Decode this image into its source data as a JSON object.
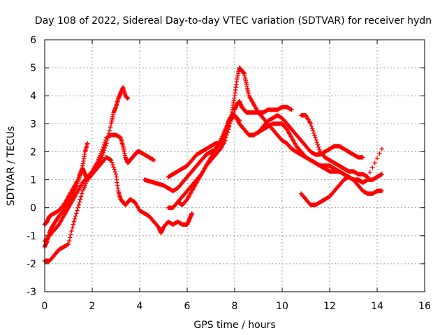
{
  "chart_data": {
    "type": "scatter",
    "title": "Day 108 of 2022, Sidereal Day-to-day VTEC variation (SDTVAR) for receiver hydn",
    "xlabel": "GPS time / hours",
    "ylabel": "SDTVAR / TECUs",
    "xlim": [
      0,
      16
    ],
    "ylim": [
      -3,
      6
    ],
    "x_ticks": [
      "0",
      "2",
      "4",
      "6",
      "8",
      "10",
      "12",
      "14",
      "16"
    ],
    "y_ticks": [
      "-3",
      "-2",
      "-1",
      "0",
      "1",
      "2",
      "3",
      "4",
      "5",
      "6"
    ],
    "grid": true,
    "marker": "plus",
    "series_color": "#ff0000",
    "series": [
      {
        "x": [
          0.0,
          0.1,
          0.2,
          0.3,
          0.45,
          0.6,
          0.8,
          1.0,
          1.2,
          1.35,
          1.5,
          1.6,
          1.7,
          1.8,
          2.0,
          2.2,
          2.4,
          2.6,
          2.8,
          2.9,
          3.0,
          3.1,
          3.2,
          3.3,
          3.4,
          3.5
        ],
        "y": [
          -1.4,
          -1.2,
          -0.9,
          -0.7,
          -0.5,
          -0.3,
          -0.1,
          0.2,
          0.5,
          0.8,
          1.2,
          1.4,
          1.2,
          1.0,
          1.2,
          1.5,
          1.8,
          2.3,
          3.0,
          3.4,
          3.6,
          3.9,
          4.1,
          4.3,
          4.0,
          3.9
        ]
      },
      {
        "x": [
          0.0,
          0.1,
          0.2,
          0.4,
          0.6,
          0.8,
          1.0,
          1.2,
          1.4,
          1.6,
          1.7,
          1.8
        ],
        "y": [
          -0.6,
          -0.5,
          -0.3,
          -0.2,
          -0.1,
          0.1,
          0.4,
          0.7,
          1.0,
          1.5,
          2.0,
          2.3
        ]
      },
      {
        "x": [
          0.0,
          0.2,
          0.4,
          0.6,
          0.8,
          1.0,
          1.2,
          1.4,
          1.6,
          1.8,
          2.0,
          2.2,
          2.4,
          2.6,
          2.8,
          3.0,
          3.2,
          3.3,
          3.4,
          3.5,
          3.6,
          3.7,
          3.8,
          3.9,
          4.0,
          4.2,
          4.4,
          4.6
        ],
        "y": [
          -1.2,
          -1.0,
          -0.8,
          -0.6,
          -0.3,
          0.0,
          0.3,
          0.6,
          0.9,
          1.1,
          1.3,
          1.6,
          2.0,
          2.5,
          2.6,
          2.6,
          2.5,
          2.2,
          1.8,
          1.6,
          1.7,
          1.8,
          1.9,
          2.0,
          2.0,
          1.9,
          1.8,
          1.7
        ]
      },
      {
        "x": [
          0.0,
          0.2,
          0.4,
          0.6,
          0.8,
          1.0,
          1.2,
          1.4,
          1.6,
          1.8,
          2.0,
          2.2,
          2.4,
          2.6,
          2.8,
          3.0,
          3.1,
          3.2,
          3.3,
          3.4,
          3.5,
          3.6,
          3.8,
          4.0,
          4.2,
          4.4,
          4.6,
          4.8,
          4.9,
          5.0,
          5.2,
          5.4,
          5.6,
          5.8,
          6.0,
          6.1,
          6.2
        ],
        "y": [
          -1.9,
          -1.9,
          -1.7,
          -1.5,
          -1.4,
          -1.3,
          -0.6,
          0.0,
          0.6,
          1.0,
          1.2,
          1.4,
          1.6,
          1.8,
          1.7,
          1.2,
          0.6,
          0.3,
          0.2,
          0.1,
          0.2,
          0.3,
          0.2,
          -0.1,
          -0.2,
          -0.3,
          -0.5,
          -0.7,
          -0.9,
          -0.7,
          -0.5,
          -0.6,
          -0.5,
          -0.6,
          -0.6,
          -0.4,
          -0.2
        ]
      },
      {
        "x": [
          4.2,
          4.4,
          4.6,
          4.8,
          5.0,
          5.2,
          5.4,
          5.6,
          5.8,
          6.0,
          6.2,
          6.4,
          6.6,
          6.8,
          7.0,
          7.2,
          7.4,
          7.6,
          7.7,
          7.8,
          7.9,
          8.0,
          8.1,
          8.2
        ],
        "y": [
          1.0,
          0.95,
          0.9,
          0.85,
          0.8,
          0.7,
          0.6,
          0.7,
          0.9,
          1.1,
          1.3,
          1.5,
          1.7,
          1.9,
          2.0,
          2.1,
          2.3,
          2.7,
          3.0,
          3.2,
          3.3,
          3.3,
          3.2,
          3.1
        ]
      },
      {
        "x": [
          5.2,
          5.4,
          5.6,
          5.8,
          6.0,
          6.2,
          6.4,
          6.6,
          6.8,
          7.0,
          7.2,
          7.4,
          7.6,
          7.8,
          8.0,
          8.1,
          8.2,
          8.3,
          8.4,
          8.5,
          8.6,
          8.8,
          9.0,
          9.2,
          9.4,
          9.6,
          9.8,
          10.0,
          10.2,
          10.4
        ],
        "y": [
          1.1,
          1.2,
          1.3,
          1.4,
          1.5,
          1.7,
          1.9,
          2.0,
          2.1,
          2.2,
          2.3,
          2.3,
          2.6,
          3.0,
          3.5,
          3.7,
          3.8,
          3.6,
          3.5,
          3.4,
          3.4,
          3.4,
          3.4,
          3.4,
          3.5,
          3.5,
          3.5,
          3.6,
          3.6,
          3.5
        ]
      },
      {
        "x": [
          5.6,
          5.8,
          6.0,
          6.2,
          6.4,
          6.6,
          6.8,
          7.0,
          7.2,
          7.4,
          7.6,
          7.8,
          7.9,
          8.0,
          8.1,
          8.2,
          8.3,
          8.4,
          8.5,
          8.6,
          8.8,
          9.0,
          9.2,
          9.4,
          9.6,
          9.8,
          10.0,
          10.2,
          10.4,
          10.6,
          10.8,
          11.0,
          11.2,
          11.4,
          11.6,
          11.8,
          12.0,
          12.2,
          12.4,
          12.6,
          12.8,
          13.0,
          13.2,
          13.4
        ],
        "y": [
          0.2,
          0.1,
          0.3,
          0.6,
          0.9,
          1.2,
          1.5,
          1.7,
          1.9,
          2.1,
          2.4,
          3.0,
          3.5,
          4.0,
          4.6,
          5.0,
          4.9,
          4.8,
          4.4,
          4.0,
          3.7,
          3.4,
          3.2,
          3.0,
          2.8,
          2.6,
          2.4,
          2.3,
          2.1,
          2.0,
          1.9,
          1.8,
          1.7,
          1.6,
          1.5,
          1.5,
          1.5,
          1.4,
          1.3,
          1.2,
          1.1,
          1.0,
          1.0,
          0.9
        ]
      },
      {
        "x": [
          5.2,
          5.4,
          5.6,
          5.8,
          6.0,
          6.2,
          6.4,
          6.6,
          6.8,
          7.0,
          7.2,
          7.4,
          7.6,
          7.8,
          8.0,
          8.2,
          8.4,
          8.6,
          8.8,
          9.0,
          9.2,
          9.4,
          9.6,
          9.8,
          10.0,
          10.2,
          10.4,
          10.6,
          10.8,
          11.0,
          11.2,
          11.4,
          11.6,
          11.8,
          12.0,
          12.2,
          12.4,
          12.6,
          12.8,
          13.0,
          13.2,
          13.4,
          13.6,
          13.8,
          14.0,
          14.2
        ],
        "y": [
          0.0,
          0.0,
          0.2,
          0.4,
          0.6,
          0.8,
          1.0,
          1.2,
          1.5,
          1.8,
          2.1,
          2.4,
          2.8,
          3.1,
          3.3,
          3.0,
          2.8,
          2.6,
          2.6,
          2.7,
          2.8,
          2.9,
          3.0,
          3.0,
          3.0,
          2.8,
          2.5,
          2.2,
          2.0,
          1.8,
          1.7,
          1.6,
          1.5,
          1.4,
          1.3,
          1.3,
          1.3,
          1.2,
          1.1,
          1.0,
          1.0,
          0.9,
          1.0,
          1.0,
          1.1,
          1.2
        ]
      },
      {
        "x": [
          8.2,
          8.4,
          8.6,
          8.8,
          9.0,
          9.2,
          9.4,
          9.6,
          9.8,
          10.0,
          10.2,
          10.4,
          10.6,
          10.8,
          11.0,
          11.2,
          11.4,
          11.6,
          11.8,
          12.0,
          12.2,
          12.4,
          12.6,
          12.8,
          13.0,
          13.2,
          13.4
        ],
        "y": [
          3.0,
          2.8,
          2.6,
          2.6,
          2.7,
          2.9,
          3.1,
          3.2,
          3.3,
          3.2,
          3.0,
          2.8,
          2.6,
          2.4,
          2.2,
          2.0,
          1.9,
          1.9,
          2.0,
          2.1,
          2.2,
          2.2,
          2.1,
          2.0,
          1.9,
          1.8,
          1.8
        ]
      },
      {
        "x": [
          10.8,
          11.0,
          11.2,
          11.4,
          11.6,
          11.8,
          12.0,
          12.2,
          12.4,
          12.6,
          12.8,
          13.0,
          13.2,
          13.4,
          13.6,
          13.8,
          14.0,
          14.2
        ],
        "y": [
          0.5,
          0.3,
          0.1,
          0.1,
          0.2,
          0.3,
          0.4,
          0.6,
          0.8,
          1.0,
          1.1,
          1.0,
          0.8,
          0.6,
          0.5,
          0.5,
          0.6,
          0.6
        ]
      },
      {
        "x": [
          10.8,
          11.0,
          11.2,
          11.4,
          11.6,
          11.8,
          12.0,
          12.2,
          12.4,
          12.6,
          12.8,
          13.0,
          13.2,
          13.4,
          13.6,
          14.2
        ],
        "y": [
          3.3,
          3.3,
          3.0,
          2.5,
          2.0,
          1.8,
          1.7,
          1.6,
          1.5,
          1.4,
          1.3,
          1.3,
          1.2,
          1.2,
          1.1,
          2.1
        ]
      }
    ]
  }
}
